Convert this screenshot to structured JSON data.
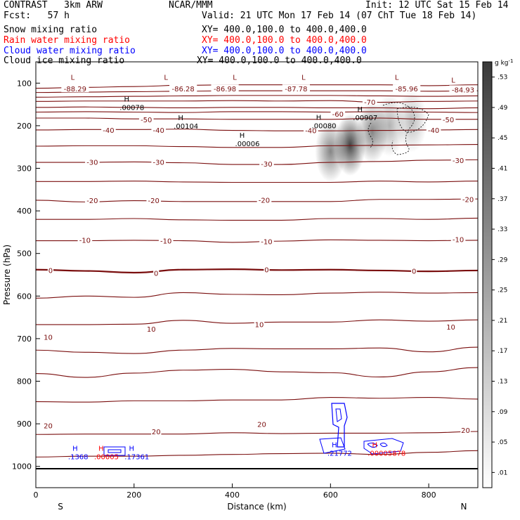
{
  "header": {
    "product": "CONTRAST",
    "model": "3km ARW",
    "org": "NCAR/MMM",
    "init": "Init: 12 UTC Sat 15 Feb 14",
    "fcst_label": "Fcst:",
    "fcst_value": "57 h",
    "valid": "Valid: 21 UTC Mon 17 Feb 14 (07 ChT Tue 18 Feb 14)"
  },
  "fields": [
    {
      "name": "Snow mixing ratio",
      "xy": "XY= 400.0,100.0 to 400.0,400.0",
      "color": "#000000"
    },
    {
      "name": "Rain water mixing ratio",
      "xy": "XY= 400.0,100.0 to 400.0,400.0",
      "color": "#ff0000"
    },
    {
      "name": "Cloud water mixing ratio",
      "xy": "XY= 400.0,100.0 to 400.0,400.0",
      "color": "#0000ff"
    },
    {
      "name": "Cloud ice mixing ratio",
      "xy": "XY= 400.0,100.0 to 400.0,400.0",
      "color": "#000000"
    }
  ],
  "colorbar": {
    "unit_base": "g kg",
    "unit_exp": "-1",
    "ticks": [
      ".01",
      ".05",
      ".09",
      ".13",
      ".17",
      ".21",
      ".25",
      ".29",
      ".33",
      ".37",
      ".41",
      ".45",
      ".49",
      ".53"
    ]
  },
  "chart_data": {
    "type": "contour",
    "xlabel": "Distance (km)",
    "ylabel": "Pressure (hPa)",
    "xlim": [
      0,
      900
    ],
    "ylim": [
      1050,
      50
    ],
    "xticks": [
      0,
      200,
      400,
      600,
      800
    ],
    "yticks": [
      100,
      200,
      300,
      400,
      500,
      600,
      700,
      800,
      900,
      1000
    ],
    "x_end_labels": {
      "left": "S",
      "right": "N"
    },
    "contour_color": "#7a0e0e",
    "isotherms": [
      {
        "p": [
          112,
          110,
          108,
          105,
          104,
          104,
          104,
          104,
          106,
          104
        ],
        "bold": false
      },
      {
        "p": [
          122,
          121,
          120,
          119,
          118,
          118,
          118,
          118,
          119,
          118
        ],
        "bold": false
      },
      {
        "p": [
          133,
          132,
          131,
          130,
          129,
          129,
          129,
          130,
          131,
          130
        ],
        "bold": false
      },
      {
        "p": [
          143,
          142,
          142,
          142,
          141,
          142,
          141,
          145,
          143,
          142
        ],
        "bold": false
      },
      {
        "p": [
          157,
          156,
          157,
          158,
          157,
          157,
          158,
          158,
          160,
          158
        ],
        "bold": false
      },
      {
        "p": [
          168,
          167,
          168,
          169,
          167,
          167,
          168,
          167,
          168,
          169
        ],
        "bold": false
      },
      {
        "p": [
          182,
          182,
          184,
          184,
          185,
          185,
          185,
          182,
          185,
          185
        ],
        "bold": false
      },
      {
        "p": [
          210,
          209,
          209,
          208,
          211,
          212,
          212,
          211,
          210,
          209
        ],
        "bold": false
      },
      {
        "p": [
          248,
          247,
          247,
          249,
          251,
          251,
          247,
          246,
          245,
          244
        ],
        "bold": false
      },
      {
        "p": [
          286,
          286,
          285,
          287,
          291,
          291,
          286,
          284,
          281,
          280
        ],
        "bold": false
      },
      {
        "p": [
          331,
          331,
          330,
          332,
          333,
          333,
          333,
          330,
          332,
          330
        ],
        "bold": false
      },
      {
        "p": [
          375,
          379,
          376,
          378,
          378,
          378,
          378,
          373,
          373,
          372
        ],
        "bold": false
      },
      {
        "p": [
          420,
          420,
          418,
          421,
          422,
          422,
          418,
          418,
          420,
          417
        ],
        "bold": false
      },
      {
        "p": [
          470,
          470,
          469,
          470,
          474,
          471,
          468,
          469,
          470,
          469
        ],
        "bold": false
      },
      {
        "p": [
          538,
          541,
          545,
          538,
          537,
          539,
          538,
          540,
          542,
          540
        ],
        "bold": true
      },
      {
        "p": [
          605,
          600,
          603,
          592,
          596,
          597,
          593,
          591,
          593,
          592
        ],
        "bold": false
      },
      {
        "p": [
          667,
          667,
          666,
          657,
          664,
          661,
          661,
          656,
          659,
          656
        ],
        "bold": false
      },
      {
        "p": [
          727,
          732,
          735,
          727,
          723,
          724,
          724,
          722,
          731,
          720
        ],
        "bold": false
      },
      {
        "p": [
          782,
          791,
          781,
          774,
          772,
          778,
          780,
          790,
          778,
          768
        ],
        "bold": false
      },
      {
        "p": [
          848,
          849,
          846,
          846,
          844,
          844,
          838,
          840,
          838,
          842
        ],
        "bold": false
      },
      {
        "p": [
          925,
          924,
          924,
          924,
          921,
          923,
          922,
          922,
          921,
          918
        ],
        "bold": false
      },
      {
        "p": [
          978,
          976,
          976,
          974,
          972,
          970,
          969,
          972,
          967,
          963
        ],
        "bold": false
      }
    ],
    "isotherm_x": [
      0,
      100,
      200,
      300,
      400,
      500,
      600,
      700,
      800,
      900
    ],
    "contour_labels": [
      {
        "text": "-88.29",
        "x": 80,
        "p": 113
      },
      {
        "text": "-86.28",
        "x": 300,
        "p": 113
      },
      {
        "text": "-86.98",
        "x": 385,
        "p": 113
      },
      {
        "text": "-87.78",
        "x": 530,
        "p": 113
      },
      {
        "text": "-85.96",
        "x": 755,
        "p": 113
      },
      {
        "text": "-84.93",
        "x": 870,
        "p": 115
      },
      {
        "text": "-70",
        "x": 680,
        "p": 144
      },
      {
        "text": "-60",
        "x": 615,
        "p": 172
      },
      {
        "text": "-50",
        "x": 225,
        "p": 185
      },
      {
        "text": "-50",
        "x": 840,
        "p": 185
      },
      {
        "text": "-40",
        "x": 148,
        "p": 210
      },
      {
        "text": "-40",
        "x": 250,
        "p": 210
      },
      {
        "text": "-40",
        "x": 560,
        "p": 211
      },
      {
        "text": "-40",
        "x": 810,
        "p": 210
      },
      {
        "text": "-30",
        "x": 115,
        "p": 285
      },
      {
        "text": "-30",
        "x": 250,
        "p": 285
      },
      {
        "text": "-30",
        "x": 470,
        "p": 289
      },
      {
        "text": "-30",
        "x": 860,
        "p": 281
      },
      {
        "text": "-20",
        "x": 115,
        "p": 375
      },
      {
        "text": "-20",
        "x": 240,
        "p": 375
      },
      {
        "text": "-20",
        "x": 465,
        "p": 374
      },
      {
        "text": "-20",
        "x": 880,
        "p": 373
      },
      {
        "text": "-10",
        "x": 100,
        "p": 468
      },
      {
        "text": "-10",
        "x": 265,
        "p": 470
      },
      {
        "text": "-10",
        "x": 470,
        "p": 472
      },
      {
        "text": "-10",
        "x": 860,
        "p": 467
      },
      {
        "text": "0",
        "x": 30,
        "p": 539
      },
      {
        "text": "0",
        "x": 245,
        "p": 546
      },
      {
        "text": "0",
        "x": 470,
        "p": 538
      },
      {
        "text": "0",
        "x": 770,
        "p": 541
      },
      {
        "text": "10",
        "x": 25,
        "p": 696
      },
      {
        "text": "10",
        "x": 235,
        "p": 677
      },
      {
        "text": "10",
        "x": 455,
        "p": 666
      },
      {
        "text": "10",
        "x": 845,
        "p": 672
      },
      {
        "text": "20",
        "x": 25,
        "p": 904
      },
      {
        "text": "20",
        "x": 245,
        "p": 918
      },
      {
        "text": "20",
        "x": 460,
        "p": 901
      },
      {
        "text": "20",
        "x": 875,
        "p": 915
      }
    ],
    "extrema": [
      {
        "kind": "L",
        "x": 75,
        "p": 92,
        "color": "#7a0e0e"
      },
      {
        "kind": "L",
        "x": 265,
        "p": 92,
        "color": "#7a0e0e"
      },
      {
        "kind": "L",
        "x": 405,
        "p": 92,
        "color": "#7a0e0e"
      },
      {
        "kind": "L",
        "x": 545,
        "p": 92,
        "color": "#7a0e0e"
      },
      {
        "kind": "L",
        "x": 735,
        "p": 92,
        "color": "#7a0e0e"
      },
      {
        "kind": "L",
        "x": 850,
        "p": 99,
        "color": "#7a0e0e"
      },
      {
        "kind": "H",
        "x": 185,
        "p": 143,
        "color": "#000000",
        "value": ".00078"
      },
      {
        "kind": "H",
        "x": 295,
        "p": 187,
        "color": "#000000",
        "value": ".00104"
      },
      {
        "kind": "H",
        "x": 420,
        "p": 228,
        "color": "#000000",
        "value": ".00006"
      },
      {
        "kind": "H",
        "x": 576,
        "p": 186,
        "color": "#000000",
        "value": ".00080"
      },
      {
        "kind": "H",
        "x": 660,
        "p": 167,
        "color": "#000000",
        "value": ".00907"
      },
      {
        "kind": "H",
        "x": 80,
        "p": 963,
        "color": "#0000ff",
        "value": ".1368"
      },
      {
        "kind": "H",
        "x": 133,
        "p": 963,
        "color": "#ff0000",
        "value": ".00005"
      },
      {
        "kind": "H",
        "x": 195,
        "p": 963,
        "color": "#0000ff",
        "value": ".17361"
      },
      {
        "kind": "H",
        "x": 608,
        "p": 955,
        "color": "#0000ff",
        "value": ".21772"
      },
      {
        "kind": "H",
        "x": 690,
        "p": 955,
        "color": "#ff0000",
        "value": ".00005878"
      }
    ],
    "shading_blobs": [
      {
        "x": 600,
        "p": 260,
        "intensity": 0.55
      },
      {
        "x": 640,
        "p": 245,
        "intensity": 0.85
      },
      {
        "x": 685,
        "p": 215,
        "intensity": 0.55
      },
      {
        "x": 720,
        "p": 200,
        "intensity": 0.35
      },
      {
        "x": 765,
        "p": 190,
        "intensity": 0.3
      }
    ]
  }
}
